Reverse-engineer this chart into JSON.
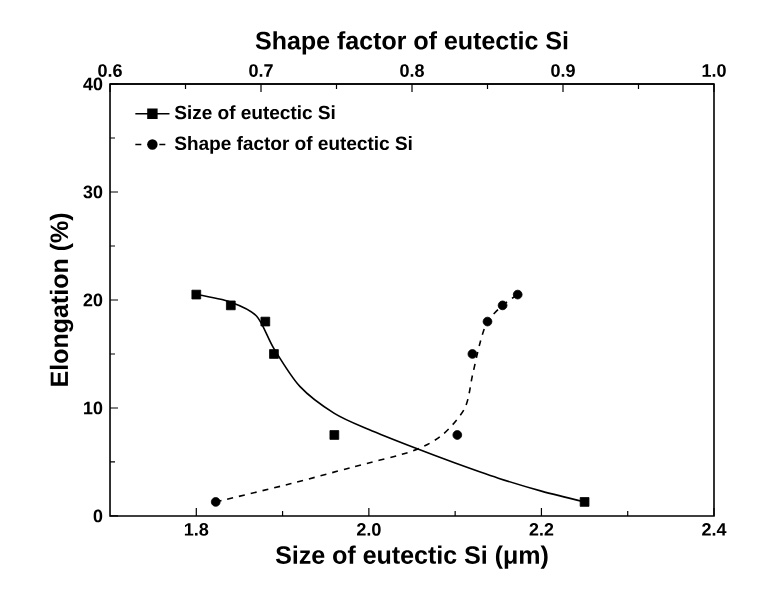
{
  "chart_data": {
    "type": "scatter",
    "xlabel": "Size of eutectic Si (μm)",
    "x2label": "Shape factor of eutectic Si",
    "ylabel": "Elongation (%)",
    "xlim": [
      1.7,
      2.4
    ],
    "xticks": [
      1.8,
      {
        "value": 2,
        "label": "2.0"
      },
      2.2,
      2.4
    ],
    "x2lim": [
      0.6,
      1.0
    ],
    "x2ticks": [
      0.6,
      0.7,
      0.8,
      0.9,
      {
        "value": 1,
        "label": "1.0"
      }
    ],
    "ylim": [
      0,
      40
    ],
    "yticks": [
      0,
      10,
      20,
      30,
      40
    ],
    "legend": "top left",
    "grid": false,
    "series": [
      {
        "name": "Size of eutectic Si",
        "marker": "square",
        "color": "#000000",
        "x": [
          1.8,
          1.84,
          1.88,
          1.89,
          1.96,
          2.25
        ],
        "values": [
          20.5,
          19.5,
          18,
          15,
          7.5,
          1.3
        ]
      },
      {
        "type": "line",
        "line_style": "solid",
        "marker": "none",
        "color": "#000000",
        "x": [
          1.8,
          1.84,
          1.87,
          1.89,
          1.92,
          1.96,
          2.0,
          2.05,
          2.1,
          2.15,
          2.2,
          2.25
        ],
        "values": [
          20.5,
          19.8,
          18.5,
          15.5,
          12,
          9.5,
          8,
          6.4,
          4.9,
          3.5,
          2.3,
          1.3
        ]
      },
      {
        "name": "Shape factor of eutectic Si",
        "marker": "circle",
        "axis": "x2",
        "color": "#000000",
        "x": [
          0.67,
          0.83,
          0.84,
          0.85,
          0.86,
          0.87
        ],
        "values": [
          1.3,
          7.5,
          15,
          18,
          19.5,
          20.5
        ]
      },
      {
        "type": "line",
        "line_style": "dashed",
        "marker": "none",
        "axis": "x2",
        "color": "#000000",
        "x": [
          0.67,
          0.72,
          0.76,
          0.8,
          0.82,
          0.835,
          0.84,
          0.845,
          0.85,
          0.86,
          0.87
        ],
        "values": [
          1.3,
          3.0,
          4.5,
          6.0,
          7.5,
          10,
          13,
          16,
          18,
          19.5,
          20.5
        ]
      }
    ]
  }
}
